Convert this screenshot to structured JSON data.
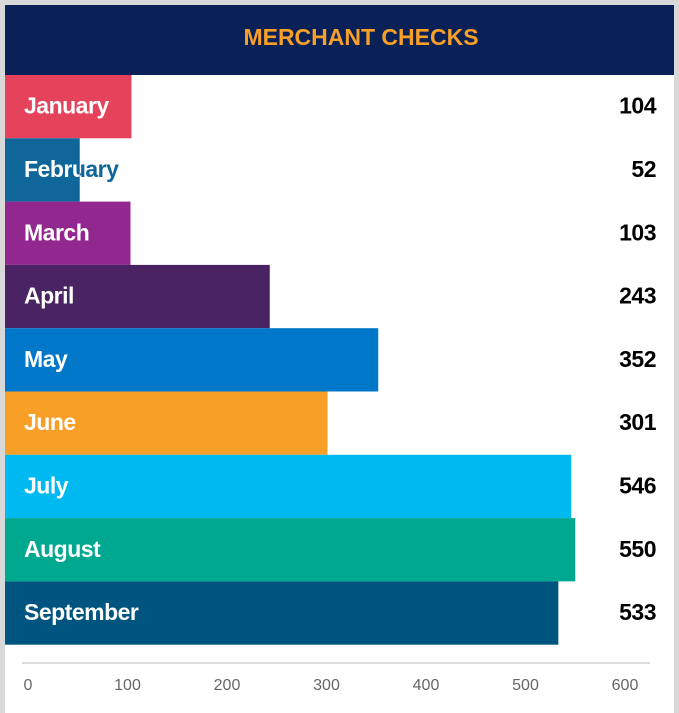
{
  "chart_data": {
    "type": "bar",
    "orientation": "horizontal",
    "title": "MERCHANT CHECKS",
    "categories": [
      "January",
      "February",
      "March",
      "April",
      "May",
      "June",
      "July",
      "August",
      "September"
    ],
    "values": [
      104,
      52,
      103,
      243,
      352,
      301,
      546,
      550,
      533
    ],
    "colors": [
      "#e5435c",
      "#0e6699",
      "#92278f",
      "#4a2462",
      "#0077c8",
      "#f89f27",
      "#00b9f1",
      "#00a88f",
      "#005580"
    ],
    "xlim": [
      0,
      600
    ],
    "xticks": [
      0,
      100,
      200,
      300,
      400,
      500,
      600
    ],
    "grid": false
  }
}
